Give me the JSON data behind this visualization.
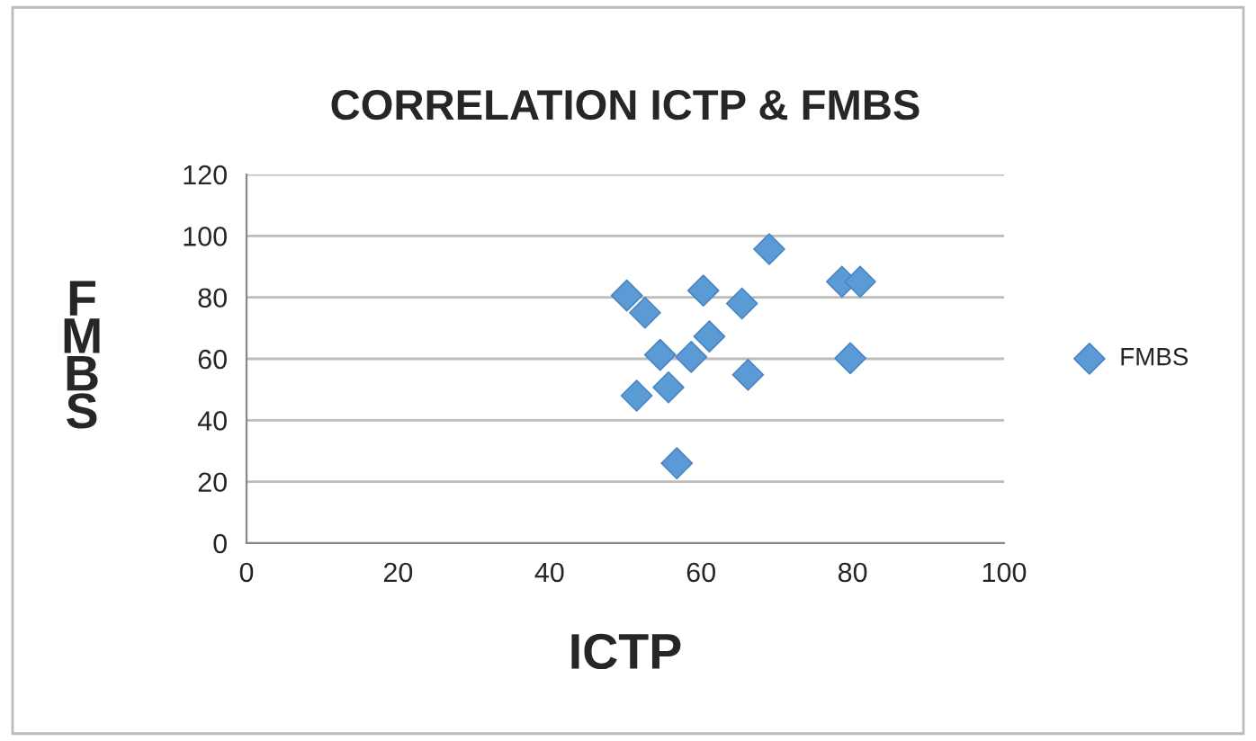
{
  "chart_data": {
    "type": "scatter",
    "title": "CORRELATION ICTP & FMBS",
    "xlabel": "ICTP",
    "ylabel": "F\nM\nB\nS",
    "series": [
      {
        "name": "FMBS",
        "color": "#5b9bd5",
        "x": [
          69.0,
          50.2,
          52.6,
          60.3,
          65.4,
          78.6,
          81.0,
          61.1,
          54.6,
          58.7,
          79.7,
          66.2,
          55.7,
          51.5,
          56.8
        ],
        "values": [
          95.7,
          80.6,
          75,
          82.2,
          78,
          85.1,
          85.1,
          67.3,
          61.3,
          60.6,
          60.2,
          54.8,
          50.7,
          48,
          26
        ]
      }
    ],
    "xlim": [
      0,
      100
    ],
    "xticks": [
      0,
      20,
      40,
      60,
      80,
      100
    ],
    "ylim": [
      0,
      120
    ],
    "yticks": [
      0,
      20,
      40,
      60,
      80,
      100,
      120
    ],
    "grid": "y",
    "legend": "right",
    "marker": "diamond"
  }
}
